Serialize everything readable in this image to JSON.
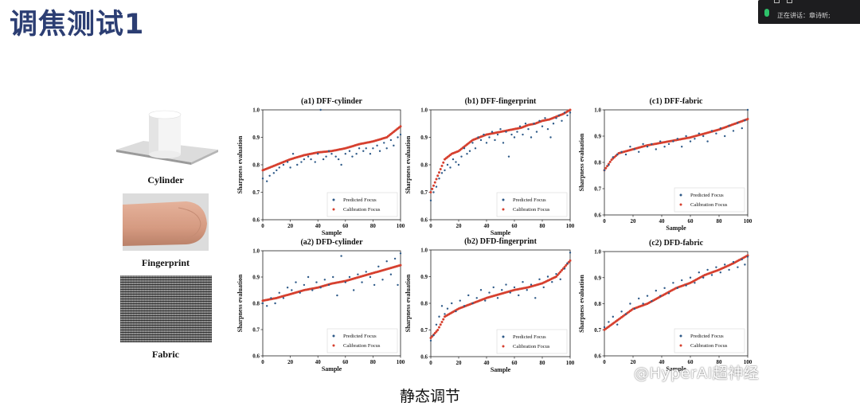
{
  "slide": {
    "title": "调焦测试1",
    "caption": "静态调节",
    "watermark": "@HyperAI超神经"
  },
  "meeting": {
    "speaking_text": "正在讲话：章诗昕;"
  },
  "objects": [
    {
      "label": "Cylinder"
    },
    {
      "label": "Fingerprint"
    },
    {
      "label": "Fabric"
    }
  ],
  "colors": {
    "predicted": "#2e5a88",
    "calibration": "#d6402f",
    "title_blue": "#2c3e73"
  },
  "chart_data": [
    {
      "id": "a1",
      "type": "scatter",
      "title": "(a1) DFF-cylinder",
      "xlabel": "Sample",
      "ylabel": "Sharpness evaluation",
      "xlim": [
        0,
        100
      ],
      "ylim": [
        0.6,
        1.0
      ],
      "xticks": [
        "0",
        "20",
        "40",
        "60",
        "80",
        "100"
      ],
      "yticks": [
        "0.6",
        "0.7",
        "0.8",
        "0.9",
        "1.0"
      ],
      "legend": [
        "Predicted Focus",
        "Calibration Focus"
      ],
      "legend_position": "lower-right",
      "predicted": [
        [
          0,
          0.75
        ],
        [
          3,
          0.74
        ],
        [
          5,
          0.76
        ],
        [
          8,
          0.77
        ],
        [
          10,
          0.78
        ],
        [
          12,
          0.79
        ],
        [
          15,
          0.8
        ],
        [
          18,
          0.81
        ],
        [
          20,
          0.79
        ],
        [
          22,
          0.84
        ],
        [
          25,
          0.8
        ],
        [
          28,
          0.81
        ],
        [
          30,
          0.82
        ],
        [
          33,
          0.83
        ],
        [
          35,
          0.82
        ],
        [
          38,
          0.81
        ],
        [
          40,
          0.84
        ],
        [
          42,
          1.0
        ],
        [
          44,
          0.82
        ],
        [
          46,
          0.83
        ],
        [
          48,
          0.85
        ],
        [
          50,
          0.84
        ],
        [
          53,
          0.83
        ],
        [
          55,
          0.82
        ],
        [
          57,
          0.8
        ],
        [
          60,
          0.84
        ],
        [
          63,
          0.85
        ],
        [
          65,
          0.83
        ],
        [
          68,
          0.84
        ],
        [
          70,
          0.86
        ],
        [
          73,
          0.85
        ],
        [
          75,
          0.86
        ],
        [
          78,
          0.84
        ],
        [
          80,
          0.86
        ],
        [
          83,
          0.87
        ],
        [
          85,
          0.85
        ],
        [
          88,
          0.88
        ],
        [
          90,
          0.86
        ],
        [
          93,
          0.89
        ],
        [
          95,
          0.87
        ],
        [
          98,
          0.9
        ],
        [
          100,
          0.91
        ]
      ],
      "calibration": [
        [
          0,
          0.78
        ],
        [
          10,
          0.8
        ],
        [
          20,
          0.82
        ],
        [
          30,
          0.835
        ],
        [
          40,
          0.845
        ],
        [
          50,
          0.85
        ],
        [
          60,
          0.86
        ],
        [
          70,
          0.875
        ],
        [
          80,
          0.885
        ],
        [
          90,
          0.9
        ],
        [
          100,
          0.94
        ]
      ]
    },
    {
      "id": "b1",
      "type": "scatter",
      "title": "(b1) DFF-fingerprint",
      "xlabel": "Sample",
      "ylabel": "Sharpness evaluation",
      "xlim": [
        0,
        100
      ],
      "ylim": [
        0.6,
        1.0
      ],
      "xticks": [
        "0",
        "20",
        "40",
        "60",
        "80",
        "100"
      ],
      "yticks": [
        "0.6",
        "0.7",
        "0.8",
        "0.9",
        "1.0"
      ],
      "legend": [
        "Predicted Focus",
        "Calibration Focus"
      ],
      "legend_position": "lower-right",
      "predicted": [
        [
          0,
          0.67
        ],
        [
          2,
          0.7
        ],
        [
          4,
          0.72
        ],
        [
          6,
          0.75
        ],
        [
          8,
          0.77
        ],
        [
          10,
          0.78
        ],
        [
          12,
          0.8
        ],
        [
          14,
          0.79
        ],
        [
          16,
          0.82
        ],
        [
          18,
          0.81
        ],
        [
          20,
          0.8
        ],
        [
          22,
          0.83
        ],
        [
          24,
          0.86
        ],
        [
          26,
          0.84
        ],
        [
          28,
          0.85
        ],
        [
          30,
          0.88
        ],
        [
          32,
          0.86
        ],
        [
          34,
          0.9
        ],
        [
          36,
          0.89
        ],
        [
          38,
          0.91
        ],
        [
          40,
          0.88
        ],
        [
          42,
          0.9
        ],
        [
          44,
          0.92
        ],
        [
          46,
          0.89
        ],
        [
          48,
          0.91
        ],
        [
          50,
          0.93
        ],
        [
          52,
          0.88
        ],
        [
          54,
          0.92
        ],
        [
          56,
          0.83
        ],
        [
          58,
          0.91
        ],
        [
          60,
          0.9
        ],
        [
          62,
          0.92
        ],
        [
          64,
          0.94
        ],
        [
          66,
          0.91
        ],
        [
          68,
          0.95
        ],
        [
          70,
          0.93
        ],
        [
          72,
          0.9
        ],
        [
          74,
          0.95
        ],
        [
          76,
          0.92
        ],
        [
          78,
          0.96
        ],
        [
          80,
          0.94
        ],
        [
          82,
          0.97
        ],
        [
          84,
          0.93
        ],
        [
          86,
          0.9
        ],
        [
          88,
          0.95
        ],
        [
          90,
          0.97
        ],
        [
          92,
          0.98
        ],
        [
          94,
          0.96
        ],
        [
          96,
          0.99
        ],
        [
          98,
          0.98
        ],
        [
          100,
          0.99
        ]
      ],
      "calibration": [
        [
          0,
          0.7
        ],
        [
          5,
          0.76
        ],
        [
          10,
          0.82
        ],
        [
          15,
          0.84
        ],
        [
          20,
          0.85
        ],
        [
          25,
          0.87
        ],
        [
          30,
          0.89
        ],
        [
          35,
          0.9
        ],
        [
          40,
          0.91
        ],
        [
          45,
          0.915
        ],
        [
          50,
          0.92
        ],
        [
          55,
          0.925
        ],
        [
          60,
          0.93
        ],
        [
          65,
          0.935
        ],
        [
          70,
          0.945
        ],
        [
          75,
          0.95
        ],
        [
          80,
          0.96
        ],
        [
          85,
          0.965
        ],
        [
          90,
          0.975
        ],
        [
          95,
          0.985
        ],
        [
          100,
          1.0
        ]
      ]
    },
    {
      "id": "c1",
      "type": "scatter",
      "title": "(c1) DFF-fabric",
      "xlabel": "Sample",
      "ylabel": "Sharpness evaluation",
      "xlim": [
        0,
        100
      ],
      "ylim": [
        0.6,
        1.0
      ],
      "xticks": [
        "0",
        "20",
        "40",
        "60",
        "80",
        "100"
      ],
      "yticks": [
        "0.6",
        "0.7",
        "0.8",
        "0.9",
        "1.0"
      ],
      "legend": [
        "Predicted Focus",
        "Calibration Focus"
      ],
      "legend_position": "lower-right",
      "predicted": [
        [
          0,
          0.77
        ],
        [
          3,
          0.79
        ],
        [
          6,
          0.82
        ],
        [
          9,
          0.83
        ],
        [
          12,
          0.84
        ],
        [
          15,
          0.83
        ],
        [
          18,
          0.86
        ],
        [
          21,
          0.85
        ],
        [
          24,
          0.84
        ],
        [
          27,
          0.87
        ],
        [
          30,
          0.86
        ],
        [
          33,
          0.87
        ],
        [
          36,
          0.85
        ],
        [
          39,
          0.88
        ],
        [
          42,
          0.86
        ],
        [
          45,
          0.87
        ],
        [
          48,
          0.88
        ],
        [
          51,
          0.89
        ],
        [
          54,
          0.86
        ],
        [
          57,
          0.9
        ],
        [
          60,
          0.88
        ],
        [
          63,
          0.89
        ],
        [
          66,
          0.91
        ],
        [
          69,
          0.9
        ],
        [
          72,
          0.88
        ],
        [
          75,
          0.92
        ],
        [
          78,
          0.91
        ],
        [
          81,
          0.93
        ],
        [
          84,
          0.9
        ],
        [
          87,
          0.94
        ],
        [
          90,
          0.92
        ],
        [
          93,
          0.95
        ],
        [
          96,
          0.93
        ],
        [
          98,
          0.96
        ],
        [
          100,
          1.0
        ]
      ],
      "calibration": [
        [
          0,
          0.77
        ],
        [
          5,
          0.81
        ],
        [
          10,
          0.835
        ],
        [
          20,
          0.85
        ],
        [
          30,
          0.865
        ],
        [
          40,
          0.875
        ],
        [
          50,
          0.885
        ],
        [
          60,
          0.895
        ],
        [
          70,
          0.91
        ],
        [
          80,
          0.925
        ],
        [
          90,
          0.945
        ],
        [
          100,
          0.965
        ]
      ]
    },
    {
      "id": "a2",
      "type": "scatter",
      "title": "(a2) DFD-cylinder",
      "xlabel": "Sample",
      "ylabel": "Sharpness evaluation",
      "xlim": [
        0,
        100
      ],
      "ylim": [
        0.6,
        1.0
      ],
      "xticks": [
        "0",
        "20",
        "40",
        "60",
        "80",
        "100"
      ],
      "yticks": [
        "0.6",
        "0.7",
        "0.8",
        "0.9",
        "1.0"
      ],
      "legend": [
        "Predicted Focus",
        "Calibration Focus"
      ],
      "legend_position": "lower-right",
      "predicted": [
        [
          0,
          0.8
        ],
        [
          3,
          0.79
        ],
        [
          6,
          0.82
        ],
        [
          9,
          0.8
        ],
        [
          12,
          0.84
        ],
        [
          15,
          0.82
        ],
        [
          18,
          0.86
        ],
        [
          21,
          0.85
        ],
        [
          24,
          0.88
        ],
        [
          27,
          0.84
        ],
        [
          30,
          0.87
        ],
        [
          33,
          0.9
        ],
        [
          36,
          0.85
        ],
        [
          39,
          0.88
        ],
        [
          42,
          0.86
        ],
        [
          45,
          0.89
        ],
        [
          48,
          0.87
        ],
        [
          51,
          0.9
        ],
        [
          54,
          0.83
        ],
        [
          57,
          0.98
        ],
        [
          60,
          0.88
        ],
        [
          63,
          0.9
        ],
        [
          66,
          0.85
        ],
        [
          69,
          0.91
        ],
        [
          72,
          0.88
        ],
        [
          75,
          0.92
        ],
        [
          78,
          0.9
        ],
        [
          81,
          0.87
        ],
        [
          84,
          0.94
        ],
        [
          87,
          0.89
        ],
        [
          90,
          0.96
        ],
        [
          93,
          0.91
        ],
        [
          96,
          0.97
        ],
        [
          98,
          0.87
        ],
        [
          100,
          0.99
        ]
      ],
      "calibration": [
        [
          0,
          0.81
        ],
        [
          10,
          0.82
        ],
        [
          20,
          0.835
        ],
        [
          30,
          0.85
        ],
        [
          40,
          0.86
        ],
        [
          50,
          0.875
        ],
        [
          60,
          0.885
        ],
        [
          70,
          0.9
        ],
        [
          80,
          0.915
        ],
        [
          90,
          0.93
        ],
        [
          100,
          0.945
        ]
      ]
    },
    {
      "id": "b2",
      "type": "scatter",
      "title": "(b2) DFD-fingerprint",
      "xlabel": "Sample",
      "ylabel": "Sharpness evaluation",
      "xlim": [
        0,
        100
      ],
      "ylim": [
        0.6,
        1.0
      ],
      "xticks": [
        "0",
        "20",
        "40",
        "60",
        "80",
        "100"
      ],
      "yticks": [
        "0.6",
        "0.7",
        "0.8",
        "0.9",
        "1.0"
      ],
      "legend": [
        "Predicted Focus",
        "Calibration Focus"
      ],
      "legend_position": "lower-right",
      "predicted": [
        [
          0,
          0.66
        ],
        [
          2,
          0.68
        ],
        [
          4,
          0.72
        ],
        [
          6,
          0.75
        ],
        [
          8,
          0.79
        ],
        [
          10,
          0.76
        ],
        [
          12,
          0.78
        ],
        [
          15,
          0.8
        ],
        [
          18,
          0.77
        ],
        [
          21,
          0.81
        ],
        [
          24,
          0.79
        ],
        [
          27,
          0.83
        ],
        [
          30,
          0.8
        ],
        [
          33,
          0.82
        ],
        [
          36,
          0.85
        ],
        [
          39,
          0.81
        ],
        [
          42,
          0.84
        ],
        [
          45,
          0.86
        ],
        [
          48,
          0.82
        ],
        [
          51,
          0.85
        ],
        [
          54,
          0.87
        ],
        [
          57,
          0.84
        ],
        [
          60,
          0.86
        ],
        [
          63,
          0.83
        ],
        [
          66,
          0.88
        ],
        [
          69,
          0.85
        ],
        [
          72,
          0.87
        ],
        [
          75,
          0.82
        ],
        [
          78,
          0.89
        ],
        [
          81,
          0.86
        ],
        [
          84,
          0.9
        ],
        [
          87,
          0.88
        ],
        [
          90,
          0.91
        ],
        [
          93,
          0.89
        ],
        [
          96,
          0.93
        ],
        [
          98,
          0.95
        ],
        [
          100,
          0.99
        ]
      ],
      "calibration": [
        [
          0,
          0.67
        ],
        [
          5,
          0.7
        ],
        [
          10,
          0.75
        ],
        [
          20,
          0.78
        ],
        [
          30,
          0.8
        ],
        [
          40,
          0.82
        ],
        [
          50,
          0.835
        ],
        [
          60,
          0.85
        ],
        [
          70,
          0.86
        ],
        [
          80,
          0.875
        ],
        [
          90,
          0.9
        ],
        [
          100,
          0.96
        ]
      ]
    },
    {
      "id": "c2",
      "type": "scatter",
      "title": "(c2) DFD-fabric",
      "xlabel": "Sample",
      "ylabel": "Sharpness evaluation",
      "xlim": [
        0,
        100
      ],
      "ylim": [
        0.6,
        1.0
      ],
      "xticks": [
        "0",
        "20",
        "40",
        "60",
        "80",
        "100"
      ],
      "yticks": [
        "0.6",
        "0.7",
        "0.8",
        "0.9",
        "1.0"
      ],
      "legend": [
        "Predicted Focus",
        "Calibration Focus"
      ],
      "legend_position": "lower-right",
      "predicted": [
        [
          0,
          0.71
        ],
        [
          3,
          0.73
        ],
        [
          6,
          0.75
        ],
        [
          9,
          0.72
        ],
        [
          12,
          0.77
        ],
        [
          15,
          0.76
        ],
        [
          18,
          0.8
        ],
        [
          21,
          0.78
        ],
        [
          24,
          0.82
        ],
        [
          27,
          0.8
        ],
        [
          30,
          0.83
        ],
        [
          33,
          0.81
        ],
        [
          36,
          0.85
        ],
        [
          39,
          0.83
        ],
        [
          42,
          0.86
        ],
        [
          45,
          0.84
        ],
        [
          48,
          0.88
        ],
        [
          51,
          0.86
        ],
        [
          54,
          0.89
        ],
        [
          57,
          0.87
        ],
        [
          60,
          0.9
        ],
        [
          63,
          0.88
        ],
        [
          66,
          0.92
        ],
        [
          69,
          0.9
        ],
        [
          72,
          0.93
        ],
        [
          75,
          0.91
        ],
        [
          78,
          0.94
        ],
        [
          81,
          0.92
        ],
        [
          84,
          0.95
        ],
        [
          87,
          0.93
        ],
        [
          90,
          0.96
        ],
        [
          93,
          0.94
        ],
        [
          96,
          0.97
        ],
        [
          98,
          0.95
        ],
        [
          100,
          0.98
        ]
      ],
      "calibration": [
        [
          0,
          0.7
        ],
        [
          10,
          0.74
        ],
        [
          20,
          0.78
        ],
        [
          30,
          0.8
        ],
        [
          40,
          0.83
        ],
        [
          50,
          0.86
        ],
        [
          60,
          0.88
        ],
        [
          70,
          0.91
        ],
        [
          80,
          0.93
        ],
        [
          90,
          0.955
        ],
        [
          100,
          0.985
        ]
      ]
    }
  ]
}
